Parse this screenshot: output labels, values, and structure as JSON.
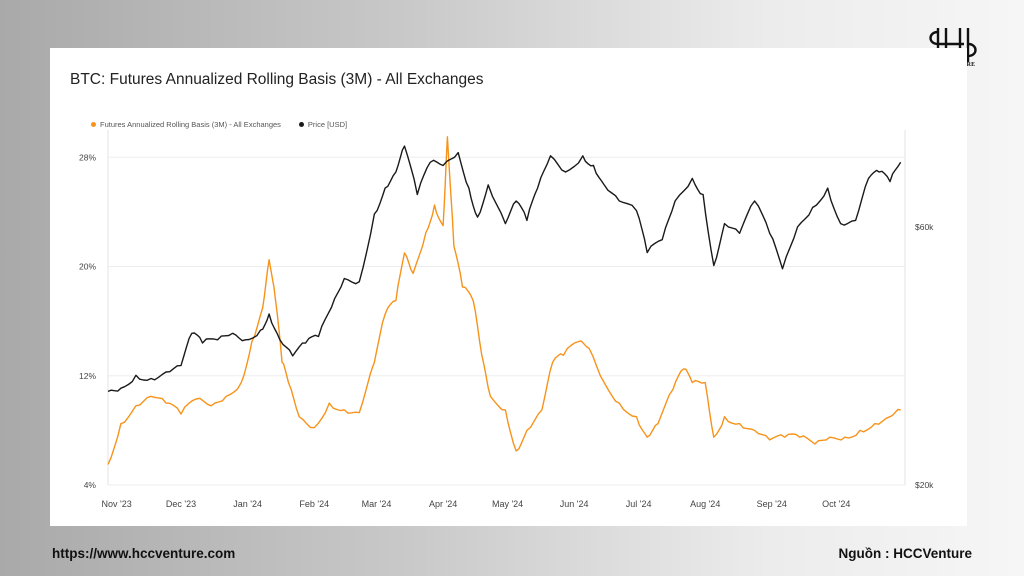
{
  "brand": {
    "logo_text": "HCCVENTURE"
  },
  "footer": {
    "url": "https://www.hccventure.com",
    "source": "Nguồn : HCCVenture"
  },
  "colors": {
    "basis": "#F7931A",
    "price": "#1a1a1a"
  },
  "chart_data": {
    "type": "line",
    "title": "BTC: Futures Annualized Rolling Basis (3M) - All Exchanges",
    "x_ticks": [
      "Nov '23",
      "Dec '23",
      "Jan '24",
      "Feb '24",
      "Mar '24",
      "Apr '24",
      "May '24",
      "Jun '24",
      "Jul '24",
      "Aug '24",
      "Sep '24",
      "Oct '24"
    ],
    "y_left": {
      "ticks": [
        "4%",
        "12%",
        "20%",
        "28%"
      ],
      "range": [
        4,
        30
      ]
    },
    "y_right": {
      "ticks": [
        "$20k",
        "$60k"
      ],
      "range": [
        20000,
        75000
      ]
    },
    "grid": true,
    "legend_position": "top-left",
    "series": [
      {
        "name": "Futures Annualized Rolling Basis (3M) - All Exchanges",
        "axis": "left",
        "points": [
          [
            "2023-10-28",
            5.5
          ],
          [
            "2023-11-03",
            8.5
          ],
          [
            "2023-11-10",
            9.8
          ],
          [
            "2023-11-17",
            10.5
          ],
          [
            "2023-11-24",
            10.0
          ],
          [
            "2023-12-01",
            9.2
          ],
          [
            "2023-12-08",
            10.3
          ],
          [
            "2023-12-15",
            9.8
          ],
          [
            "2023-12-22",
            10.5
          ],
          [
            "2023-12-29",
            11.5
          ],
          [
            "2024-01-03",
            14.5
          ],
          [
            "2024-01-08",
            17.0
          ],
          [
            "2024-01-11",
            20.5
          ],
          [
            "2024-01-14",
            17.5
          ],
          [
            "2024-01-17",
            13.0
          ],
          [
            "2024-01-20",
            11.5
          ],
          [
            "2024-01-25",
            9.0
          ],
          [
            "2024-02-01",
            8.2
          ],
          [
            "2024-02-08",
            10.0
          ],
          [
            "2024-02-15",
            9.5
          ],
          [
            "2024-02-22",
            9.3
          ],
          [
            "2024-02-29",
            13.0
          ],
          [
            "2024-03-05",
            16.5
          ],
          [
            "2024-03-10",
            17.5
          ],
          [
            "2024-03-14",
            21.0
          ],
          [
            "2024-03-18",
            19.5
          ],
          [
            "2024-03-24",
            22.5
          ],
          [
            "2024-03-28",
            24.5
          ],
          [
            "2024-04-01",
            23.0
          ],
          [
            "2024-04-03",
            29.5
          ],
          [
            "2024-04-06",
            21.5
          ],
          [
            "2024-04-10",
            18.5
          ],
          [
            "2024-04-15",
            17.5
          ],
          [
            "2024-04-19",
            13.5
          ],
          [
            "2024-04-23",
            10.5
          ],
          [
            "2024-04-30",
            9.5
          ],
          [
            "2024-05-05",
            6.5
          ],
          [
            "2024-05-10",
            8.0
          ],
          [
            "2024-05-17",
            9.5
          ],
          [
            "2024-05-22",
            13.0
          ],
          [
            "2024-05-27",
            13.5
          ],
          [
            "2024-06-03",
            14.5
          ],
          [
            "2024-06-08",
            14.0
          ],
          [
            "2024-06-15",
            11.5
          ],
          [
            "2024-06-22",
            10.0
          ],
          [
            "2024-06-30",
            9.0
          ],
          [
            "2024-07-05",
            7.5
          ],
          [
            "2024-07-10",
            8.5
          ],
          [
            "2024-07-17",
            11.0
          ],
          [
            "2024-07-22",
            12.5
          ],
          [
            "2024-07-26",
            11.5
          ],
          [
            "2024-08-01",
            11.5
          ],
          [
            "2024-08-05",
            7.5
          ],
          [
            "2024-08-10",
            9.0
          ],
          [
            "2024-08-17",
            8.5
          ],
          [
            "2024-08-24",
            8.0
          ],
          [
            "2024-08-31",
            7.3
          ],
          [
            "2024-09-07",
            7.5
          ],
          [
            "2024-09-14",
            7.5
          ],
          [
            "2024-09-21",
            7.0
          ],
          [
            "2024-09-28",
            7.5
          ],
          [
            "2024-10-05",
            7.5
          ],
          [
            "2024-10-12",
            8.0
          ],
          [
            "2024-10-19",
            8.5
          ],
          [
            "2024-10-26",
            9.0
          ],
          [
            "2024-10-31",
            9.5
          ]
        ]
      },
      {
        "name": "Price [USD]",
        "axis": "right",
        "points": [
          [
            "2023-10-28",
            34500
          ],
          [
            "2023-11-03",
            35000
          ],
          [
            "2023-11-10",
            37000
          ],
          [
            "2023-11-17",
            36500
          ],
          [
            "2023-11-24",
            37500
          ],
          [
            "2023-12-01",
            38500
          ],
          [
            "2023-12-06",
            43500
          ],
          [
            "2023-12-11",
            42000
          ],
          [
            "2023-12-18",
            42500
          ],
          [
            "2023-12-25",
            43500
          ],
          [
            "2023-12-31",
            42500
          ],
          [
            "2024-01-07",
            44000
          ],
          [
            "2024-01-11",
            46500
          ],
          [
            "2024-01-16",
            42500
          ],
          [
            "2024-01-22",
            40000
          ],
          [
            "2024-01-28",
            42000
          ],
          [
            "2024-02-03",
            43000
          ],
          [
            "2024-02-09",
            47500
          ],
          [
            "2024-02-15",
            52000
          ],
          [
            "2024-02-22",
            51500
          ],
          [
            "2024-02-29",
            62000
          ],
          [
            "2024-03-05",
            66000
          ],
          [
            "2024-03-10",
            68500
          ],
          [
            "2024-03-14",
            72500
          ],
          [
            "2024-03-20",
            65000
          ],
          [
            "2024-03-26",
            70000
          ],
          [
            "2024-04-01",
            69500
          ],
          [
            "2024-04-08",
            71500
          ],
          [
            "2024-04-13",
            66000
          ],
          [
            "2024-04-17",
            61500
          ],
          [
            "2024-04-22",
            66500
          ],
          [
            "2024-04-30",
            60500
          ],
          [
            "2024-05-05",
            64000
          ],
          [
            "2024-05-10",
            61000
          ],
          [
            "2024-05-15",
            66000
          ],
          [
            "2024-05-21",
            71000
          ],
          [
            "2024-05-28",
            68500
          ],
          [
            "2024-06-05",
            71000
          ],
          [
            "2024-06-10",
            69500
          ],
          [
            "2024-06-15",
            66500
          ],
          [
            "2024-06-22",
            64000
          ],
          [
            "2024-06-30",
            62500
          ],
          [
            "2024-07-05",
            56000
          ],
          [
            "2024-07-12",
            58000
          ],
          [
            "2024-07-18",
            64000
          ],
          [
            "2024-07-26",
            67500
          ],
          [
            "2024-07-31",
            65000
          ],
          [
            "2024-08-05",
            54000
          ],
          [
            "2024-08-10",
            60500
          ],
          [
            "2024-08-17",
            59000
          ],
          [
            "2024-08-24",
            64000
          ],
          [
            "2024-08-31",
            59000
          ],
          [
            "2024-09-06",
            53500
          ],
          [
            "2024-09-13",
            60000
          ],
          [
            "2024-09-20",
            63000
          ],
          [
            "2024-09-27",
            66000
          ],
          [
            "2024-10-03",
            60500
          ],
          [
            "2024-10-10",
            61000
          ],
          [
            "2024-10-16",
            67500
          ],
          [
            "2024-10-21",
            68500
          ],
          [
            "2024-10-26",
            67000
          ],
          [
            "2024-10-31",
            70000
          ]
        ]
      }
    ]
  }
}
